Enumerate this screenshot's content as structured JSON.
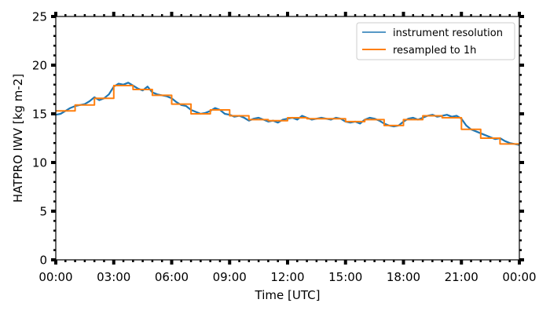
{
  "chart_data": {
    "type": "line",
    "title": "",
    "xlabel": "Time [UTC]",
    "ylabel": "HATPRO IWV [kg m-2]",
    "xlim": [
      0,
      24
    ],
    "ylim": [
      0,
      25
    ],
    "x_tick_labels": [
      "00:00",
      "03:00",
      "06:00",
      "09:00",
      "12:00",
      "15:00",
      "18:00",
      "21:00",
      "00:00"
    ],
    "y_ticks": [
      0,
      5,
      10,
      15,
      20,
      25
    ],
    "y_tick_labels": [
      "0",
      "5",
      "10",
      "15",
      "20",
      "25"
    ],
    "grid": false,
    "legend_position": "top-right",
    "series": [
      {
        "name": "instrument resolution",
        "color": "#1f77b4",
        "style": "line",
        "x": [
          0.0,
          0.25,
          0.5,
          0.75,
          1.0,
          1.25,
          1.5,
          1.75,
          2.0,
          2.25,
          2.5,
          2.75,
          3.0,
          3.25,
          3.5,
          3.75,
          4.0,
          4.25,
          4.5,
          4.75,
          5.0,
          5.25,
          5.5,
          5.75,
          6.0,
          6.25,
          6.5,
          6.75,
          7.0,
          7.25,
          7.5,
          7.75,
          8.0,
          8.25,
          8.5,
          8.75,
          9.0,
          9.25,
          9.5,
          9.75,
          10.0,
          10.25,
          10.5,
          10.75,
          11.0,
          11.25,
          11.5,
          11.75,
          12.0,
          12.25,
          12.5,
          12.75,
          13.0,
          13.25,
          13.5,
          13.75,
          14.0,
          14.25,
          14.5,
          14.75,
          15.0,
          15.25,
          15.5,
          15.75,
          16.0,
          16.25,
          16.5,
          16.75,
          17.0,
          17.25,
          17.5,
          17.75,
          18.0,
          18.25,
          18.5,
          18.75,
          19.0,
          19.25,
          19.5,
          19.75,
          20.0,
          20.25,
          20.5,
          20.75,
          21.0,
          21.25,
          21.5,
          21.75,
          22.0,
          22.25,
          22.5,
          22.75,
          23.0,
          23.25,
          23.5,
          23.75,
          24.0
        ],
        "y": [
          14.9,
          15.0,
          15.3,
          15.6,
          15.8,
          15.9,
          16.0,
          16.3,
          16.7,
          16.4,
          16.6,
          17.0,
          17.8,
          18.1,
          18.0,
          18.2,
          17.9,
          17.6,
          17.4,
          17.8,
          17.2,
          17.0,
          16.9,
          16.8,
          16.6,
          16.2,
          15.9,
          15.8,
          15.4,
          15.2,
          15.0,
          15.1,
          15.3,
          15.6,
          15.4,
          15.0,
          14.9,
          14.7,
          14.8,
          14.6,
          14.3,
          14.5,
          14.6,
          14.4,
          14.2,
          14.3,
          14.1,
          14.4,
          14.5,
          14.6,
          14.4,
          14.8,
          14.6,
          14.4,
          14.5,
          14.6,
          14.5,
          14.4,
          14.6,
          14.5,
          14.2,
          14.1,
          14.2,
          14.0,
          14.4,
          14.6,
          14.5,
          14.3,
          14.0,
          13.8,
          13.7,
          13.8,
          14.2,
          14.5,
          14.6,
          14.4,
          14.6,
          14.8,
          14.9,
          14.7,
          14.8,
          14.9,
          14.7,
          14.8,
          14.5,
          13.8,
          13.4,
          13.2,
          13.0,
          12.8,
          12.6,
          12.4,
          12.5,
          12.2,
          12.0,
          11.9,
          11.8
        ]
      },
      {
        "name": "resampled to 1h",
        "color": "#ff7f0e",
        "style": "step",
        "x": [
          0,
          1,
          2,
          3,
          4,
          5,
          6,
          7,
          8,
          9,
          10,
          11,
          12,
          13,
          14,
          15,
          16,
          17,
          18,
          19,
          20,
          21,
          22,
          23,
          24
        ],
        "y": [
          15.3,
          15.9,
          16.6,
          17.9,
          17.5,
          16.9,
          16.0,
          15.0,
          15.4,
          14.8,
          14.4,
          14.3,
          14.6,
          14.5,
          14.5,
          14.2,
          14.4,
          13.8,
          14.4,
          14.8,
          14.6,
          13.4,
          12.5,
          11.9,
          11.9
        ]
      }
    ]
  }
}
